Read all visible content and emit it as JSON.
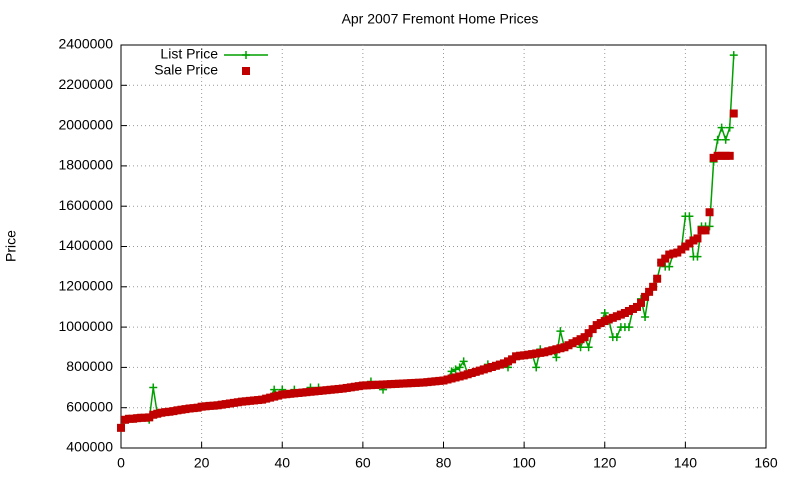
{
  "chart_data": {
    "type": "line",
    "title": "Apr 2007 Fremont Home Prices",
    "y_label": "Price",
    "x": [
      0,
      1,
      2,
      3,
      4,
      5,
      6,
      7,
      8,
      9,
      10,
      11,
      12,
      13,
      14,
      15,
      16,
      17,
      18,
      19,
      20,
      21,
      22,
      23,
      24,
      25,
      26,
      27,
      28,
      29,
      30,
      31,
      32,
      33,
      34,
      35,
      36,
      37,
      38,
      39,
      40,
      41,
      42,
      43,
      44,
      45,
      46,
      47,
      48,
      49,
      50,
      51,
      52,
      53,
      54,
      55,
      56,
      57,
      58,
      59,
      60,
      61,
      62,
      63,
      64,
      65,
      66,
      67,
      68,
      69,
      70,
      71,
      72,
      73,
      74,
      75,
      76,
      77,
      78,
      79,
      80,
      81,
      82,
      83,
      84,
      85,
      86,
      87,
      88,
      89,
      90,
      91,
      92,
      93,
      94,
      95,
      96,
      97,
      98,
      99,
      100,
      101,
      102,
      103,
      104,
      105,
      106,
      107,
      108,
      109,
      110,
      111,
      112,
      113,
      114,
      115,
      116,
      117,
      118,
      119,
      120,
      121,
      122,
      123,
      124,
      125,
      126,
      127,
      128,
      129,
      130,
      131,
      132,
      133,
      134,
      135,
      136,
      137,
      138,
      139,
      140,
      141,
      142,
      143,
      144,
      145,
      146,
      147,
      148,
      149,
      150,
      151,
      152
    ],
    "series": [
      {
        "name": "List Price",
        "color": "#00a000",
        "style": "linespoints",
        "values": [
          500000,
          540000,
          545000,
          545000,
          548000,
          550000,
          550000,
          540000,
          700000,
          570000,
          575000,
          578000,
          580000,
          583000,
          587000,
          590000,
          593000,
          596000,
          598000,
          600000,
          605000,
          607000,
          609000,
          610000,
          612000,
          615000,
          618000,
          621000,
          624000,
          627000,
          630000,
          632000,
          634000,
          636000,
          638000,
          640000,
          645000,
          650000,
          690000,
          660000,
          690000,
          667000,
          669000,
          690000,
          673000,
          675000,
          677000,
          700000,
          681000,
          700000,
          685000,
          687000,
          689000,
          691000,
          693000,
          695000,
          698000,
          701000,
          704000,
          707000,
          710000,
          711000,
          730000,
          713000,
          714000,
          690000,
          716000,
          717000,
          718000,
          719000,
          720000,
          721000,
          722000,
          723000,
          724000,
          725000,
          727000,
          729000,
          731000,
          733000,
          735000,
          740000,
          780000,
          790000,
          800000,
          830000,
          766000,
          772000,
          778000,
          784000,
          790000,
          815000,
          802000,
          808000,
          814000,
          820000,
          800000,
          840000,
          855000,
          858000,
          860000,
          863000,
          866000,
          800000,
          890000,
          875000,
          880000,
          885000,
          850000,
          980000,
          900000,
          910000,
          920000,
          930000,
          900000,
          950000,
          900000,
          990000,
          1010000,
          1020000,
          1070000,
          1038000,
          950000,
          950000,
          1000000,
          1000000,
          1000000,
          1090000,
          1100000,
          1140000,
          1050000,
          1175000,
          1200000,
          1240000,
          1320000,
          1300000,
          1300000,
          1365000,
          1370000,
          1385000,
          1550000,
          1550000,
          1350000,
          1350000,
          1500000,
          1500000,
          1500000,
          1820000,
          1930000,
          1990000,
          1930000,
          1990000,
          2350000
        ]
      },
      {
        "name": "Sale Price",
        "color": "#c00000",
        "style": "points",
        "values": [
          500000,
          540000,
          545000,
          545000,
          548000,
          550000,
          550000,
          552000,
          565000,
          570000,
          575000,
          578000,
          580000,
          583000,
          587000,
          590000,
          593000,
          596000,
          598000,
          600000,
          605000,
          607000,
          609000,
          610000,
          612000,
          615000,
          618000,
          621000,
          624000,
          627000,
          630000,
          632000,
          634000,
          636000,
          638000,
          640000,
          645000,
          650000,
          655000,
          660000,
          665000,
          667000,
          669000,
          671000,
          673000,
          675000,
          677000,
          679000,
          681000,
          683000,
          685000,
          687000,
          689000,
          691000,
          693000,
          695000,
          698000,
          701000,
          704000,
          707000,
          710000,
          711000,
          712000,
          713000,
          714000,
          715000,
          716000,
          717000,
          718000,
          719000,
          720000,
          721000,
          722000,
          723000,
          724000,
          725000,
          727000,
          729000,
          731000,
          733000,
          735000,
          740000,
          745000,
          750000,
          755000,
          760000,
          766000,
          772000,
          778000,
          784000,
          790000,
          796000,
          802000,
          808000,
          814000,
          820000,
          830000,
          840000,
          855000,
          858000,
          860000,
          863000,
          866000,
          869000,
          872000,
          875000,
          880000,
          885000,
          890000,
          895000,
          900000,
          910000,
          920000,
          930000,
          940000,
          950000,
          970000,
          990000,
          1010000,
          1020000,
          1030000,
          1038000,
          1046000,
          1054000,
          1062000,
          1070000,
          1080000,
          1090000,
          1100000,
          1120000,
          1150000,
          1175000,
          1200000,
          1240000,
          1320000,
          1340000,
          1360000,
          1365000,
          1370000,
          1385000,
          1400000,
          1415000,
          1430000,
          1440000,
          1480000,
          1480000,
          1570000,
          1840000,
          1850000,
          1850000,
          1850000,
          1850000,
          2060000
        ]
      }
    ],
    "xlim": [
      0,
      160
    ],
    "xticks": [
      0,
      20,
      40,
      60,
      80,
      100,
      120,
      140,
      160
    ],
    "ylim": [
      400000,
      2400000
    ],
    "yticks": [
      400000,
      600000,
      800000,
      1000000,
      1200000,
      1400000,
      1600000,
      1800000,
      2000000,
      2200000,
      2400000
    ],
    "grid": true,
    "legend": "top-left"
  }
}
